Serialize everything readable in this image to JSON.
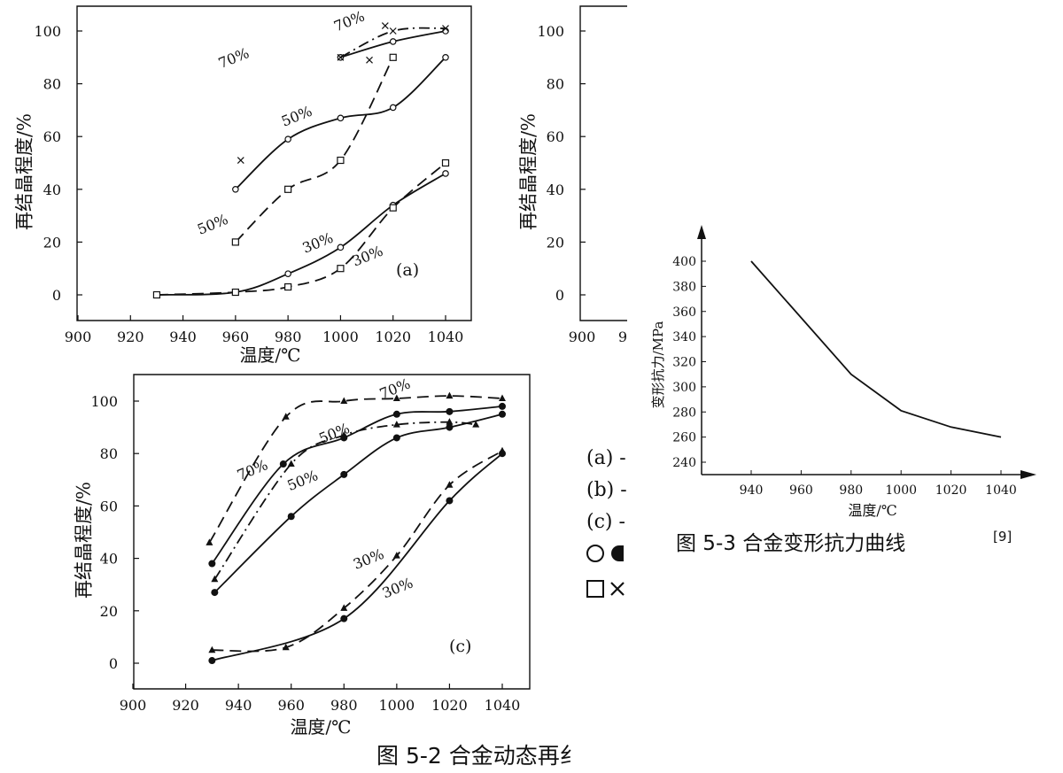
{
  "page": {
    "figure_5_2_caption": "图 5-2 合金动态再纟",
    "figure_5_3_caption": "图 5-3 合金变形抗力曲线",
    "figure_5_3_citation": "[9]",
    "legend_cutoff": {
      "items": [
        "(a) -",
        "(b) -",
        "(c) -"
      ],
      "symbol_rows": [
        [
          "circle-open",
          "circle-filled"
        ],
        [
          "square-open",
          "cross"
        ]
      ]
    }
  },
  "chart_data": [
    {
      "id": "fig5-2a",
      "type": "line",
      "title": "",
      "panel_label": "(a)",
      "xlabel": "温度/℃",
      "ylabel": "再结晶程度/%",
      "xlim": [
        900,
        1050
      ],
      "ylim": [
        -10,
        110
      ],
      "xticks": [
        900,
        920,
        940,
        960,
        980,
        1000,
        1020,
        1040
      ],
      "yticks": [
        0,
        20,
        40,
        60,
        80,
        100
      ],
      "grid": false,
      "series": [
        {
          "name": "70%",
          "style": "solid",
          "marker": "circle-open",
          "label_at": [
            960,
            88
          ],
          "x": [
            1000,
            1020,
            1040
          ],
          "y": [
            90,
            96,
            100
          ]
        },
        {
          "name": "70%",
          "style": "dashdot",
          "marker": "cross",
          "label_at": [
            1004,
            102
          ],
          "x": [
            1000,
            1020,
            1040
          ],
          "y": [
            90,
            100,
            101
          ]
        },
        {
          "name": "50%",
          "style": "solid",
          "marker": "circle-open",
          "label_at": [
            984,
            66
          ],
          "x": [
            960,
            980,
            1000,
            1020,
            1040
          ],
          "y": [
            40,
            59,
            67,
            71,
            90
          ]
        },
        {
          "name": "50%",
          "style": "dashed",
          "marker": "square-open",
          "label_at": [
            952,
            25
          ],
          "x": [
            960,
            980,
            1000,
            1020
          ],
          "y": [
            20,
            40,
            51,
            90
          ]
        },
        {
          "name": "30%",
          "style": "solid",
          "marker": "circle-open",
          "label_at": [
            992,
            18
          ],
          "x": [
            930,
            960,
            980,
            1000,
            1020,
            1040
          ],
          "y": [
            0,
            1,
            8,
            18,
            34,
            46
          ]
        },
        {
          "name": "30%",
          "style": "dashed",
          "marker": "square-open",
          "label_at": [
            1011,
            13
          ],
          "x": [
            930,
            960,
            980,
            1000,
            1020,
            1040
          ],
          "y": [
            0,
            1,
            3,
            10,
            33,
            50
          ]
        }
      ],
      "extra_points": [
        {
          "marker": "cross",
          "x": 962,
          "y": 51
        },
        {
          "marker": "cross",
          "x": 1011,
          "y": 89
        },
        {
          "marker": "cross",
          "x": 1017,
          "y": 102
        }
      ]
    },
    {
      "id": "fig5-2b",
      "type": "line",
      "title": "",
      "xlabel": "",
      "ylabel": "再结晶程度/%",
      "ylim": [
        -10,
        110
      ],
      "yticks": [
        0,
        20,
        40,
        60,
        80,
        100
      ],
      "xticks_visible": [
        "900",
        "9"
      ],
      "grid": false,
      "series": []
    },
    {
      "id": "fig5-2c",
      "type": "line",
      "title": "",
      "panel_label": "(c)",
      "xlabel": "温度/℃",
      "ylabel": "再结晶程度/%",
      "xlim": [
        900,
        1050
      ],
      "ylim": [
        -10,
        110
      ],
      "xticks": [
        900,
        920,
        940,
        960,
        980,
        1000,
        1020,
        1040
      ],
      "yticks": [
        0,
        20,
        40,
        60,
        80,
        100
      ],
      "grid": false,
      "series": [
        {
          "name": "70%",
          "style": "dashed",
          "marker": "triangle-filled",
          "label_at": [
            1000,
            103
          ],
          "x": [
            929,
            958,
            980,
            1000,
            1020,
            1040
          ],
          "y": [
            46,
            94,
            100,
            101,
            102,
            101
          ]
        },
        {
          "name": "70%",
          "style": "solid",
          "marker": "circle-filled",
          "label_at": [
            946,
            72
          ],
          "x": [
            930,
            957,
            980,
            1000,
            1020,
            1040
          ],
          "y": [
            38,
            76,
            86,
            95,
            96,
            98
          ]
        },
        {
          "name": "50%",
          "style": "dashdot",
          "marker": "triangle-filled",
          "label_at": [
            977,
            86
          ],
          "x": [
            931,
            960,
            980,
            1000,
            1020,
            1030
          ],
          "y": [
            32,
            76,
            87,
            91,
            92,
            91
          ]
        },
        {
          "name": "50%",
          "style": "solid",
          "marker": "circle-filled",
          "label_at": [
            965,
            68
          ],
          "x": [
            931,
            960,
            980,
            1000,
            1020,
            1040
          ],
          "y": [
            27,
            56,
            72,
            86,
            90,
            95
          ]
        },
        {
          "name": "30%",
          "style": "dashed",
          "marker": "triangle-filled",
          "label_at": [
            990,
            38
          ],
          "x": [
            930,
            958,
            980,
            1000,
            1020,
            1040
          ],
          "y": [
            5,
            6,
            21,
            41,
            68,
            81
          ]
        },
        {
          "name": "30%",
          "style": "solid",
          "marker": "circle-filled",
          "label_at": [
            1001,
            27
          ],
          "x": [
            930,
            980,
            1020,
            1040
          ],
          "y": [
            1,
            17,
            62,
            80
          ]
        }
      ],
      "extra_points": []
    },
    {
      "id": "fig5-3",
      "type": "line",
      "title": "",
      "xlabel": "温度/℃",
      "ylabel": "变形抗力/MPa",
      "xlim": [
        915,
        1060
      ],
      "ylim": [
        228,
        412
      ],
      "xticks": [
        940,
        960,
        980,
        1000,
        1020,
        1040
      ],
      "yticks": [
        240,
        260,
        280,
        300,
        320,
        340,
        360,
        380,
        400
      ],
      "grid": false,
      "series": [
        {
          "name": "",
          "style": "solid",
          "marker": "none",
          "x": [
            940,
            980,
            1000,
            1020,
            1040
          ],
          "y": [
            400,
            310,
            281,
            268,
            260
          ]
        }
      ]
    }
  ]
}
